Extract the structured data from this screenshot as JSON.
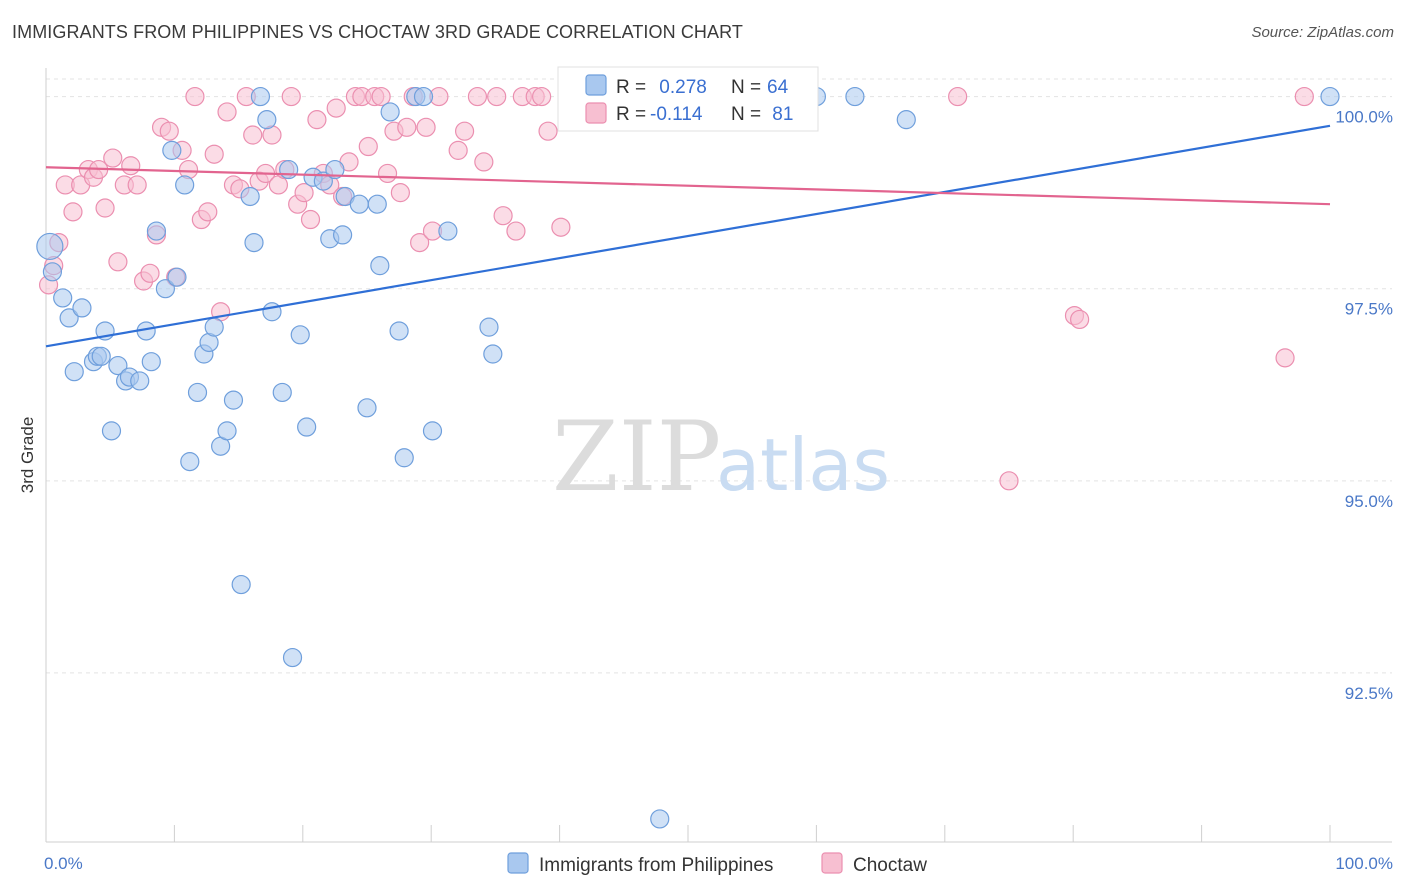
{
  "header": {
    "title": "IMMIGRANTS FROM PHILIPPINES VS CHOCTAW 3RD GRADE CORRELATION CHART",
    "source": "Source: ZipAtlas.com"
  },
  "watermark": {
    "zip": "ZIP",
    "atlas": "atlas"
  },
  "colors": {
    "blue_fill": "#a9c8ef",
    "blue_stroke": "#6f9fdc",
    "blue_line": "#2f6fd6",
    "pink_fill": "#f7bfd1",
    "pink_stroke": "#eb8fb0",
    "pink_line": "#e2648f",
    "grid": "#e3e3e3",
    "tick_label": "#4a78c7"
  },
  "legend": {
    "rows": [
      {
        "r_label": "R =",
        "r_value": " 0.278",
        "n_label": "N =",
        "n_value": "64"
      },
      {
        "r_label": "R =",
        "r_value": "-0.114",
        "n_label": "N =",
        "n_value": " 81"
      }
    ]
  },
  "chart_data": {
    "type": "scatter",
    "title": "IMMIGRANTS FROM PHILIPPINES VS CHOCTAW 3RD GRADE CORRELATION CHART",
    "xlabel": "",
    "ylabel": "3rd Grade",
    "xlim": [
      0,
      100
    ],
    "ylim": [
      90.3,
      100.45
    ],
    "x_tick_labels": [
      "0.0%",
      "100.0%"
    ],
    "y_ticks": [
      {
        "value": 100.0,
        "label": "100.0%"
      },
      {
        "value": 97.5,
        "label": "97.5%"
      },
      {
        "value": 95.0,
        "label": "95.0%"
      },
      {
        "value": 92.5,
        "label": "92.5%"
      }
    ],
    "grid": true,
    "legend_position": "top-center",
    "series": [
      {
        "name": "Immigrants from Philippines",
        "color": "#6f9fdc",
        "trend": {
          "x": [
            0,
            100
          ],
          "y": [
            96.75,
            99.62
          ]
        },
        "points": [
          [
            0.3,
            98.05
          ],
          [
            0.5,
            97.72
          ],
          [
            1.3,
            97.38
          ],
          [
            1.8,
            97.12
          ],
          [
            2.2,
            96.42
          ],
          [
            2.8,
            97.25
          ],
          [
            3.7,
            96.55
          ],
          [
            4.0,
            96.62
          ],
          [
            4.3,
            96.62
          ],
          [
            4.6,
            96.95
          ],
          [
            5.1,
            95.65
          ],
          [
            5.6,
            96.5
          ],
          [
            6.2,
            96.3
          ],
          [
            6.5,
            96.35
          ],
          [
            7.3,
            96.3
          ],
          [
            7.8,
            96.95
          ],
          [
            8.2,
            96.55
          ],
          [
            8.6,
            98.25
          ],
          [
            9.3,
            97.5
          ],
          [
            9.8,
            99.3
          ],
          [
            10.2,
            97.65
          ],
          [
            10.8,
            98.85
          ],
          [
            11.2,
            95.25
          ],
          [
            11.8,
            96.15
          ],
          [
            12.3,
            96.65
          ],
          [
            12.7,
            96.8
          ],
          [
            13.1,
            97.0
          ],
          [
            13.6,
            95.45
          ],
          [
            14.1,
            95.65
          ],
          [
            14.6,
            96.05
          ],
          [
            15.2,
            93.65
          ],
          [
            15.9,
            98.7
          ],
          [
            16.2,
            98.1
          ],
          [
            16.7,
            100.0
          ],
          [
            17.2,
            99.7
          ],
          [
            17.6,
            97.2
          ],
          [
            18.4,
            96.15
          ],
          [
            18.9,
            99.05
          ],
          [
            19.2,
            92.7
          ],
          [
            19.8,
            96.9
          ],
          [
            20.3,
            95.7
          ],
          [
            20.8,
            98.95
          ],
          [
            21.6,
            98.9
          ],
          [
            22.1,
            98.15
          ],
          [
            22.5,
            99.05
          ],
          [
            23.1,
            98.2
          ],
          [
            23.3,
            98.7
          ],
          [
            24.4,
            98.6
          ],
          [
            25.0,
            95.95
          ],
          [
            25.8,
            98.6
          ],
          [
            26.0,
            97.8
          ],
          [
            26.8,
            99.8
          ],
          [
            27.5,
            96.95
          ],
          [
            27.9,
            95.3
          ],
          [
            28.8,
            100.0
          ],
          [
            29.4,
            100.0
          ],
          [
            30.1,
            95.65
          ],
          [
            31.3,
            98.25
          ],
          [
            34.5,
            97.0
          ],
          [
            34.8,
            96.65
          ],
          [
            47.8,
            90.6
          ],
          [
            60.0,
            100.0
          ],
          [
            63.0,
            100.0
          ],
          [
            67.0,
            99.7
          ],
          [
            100.0,
            100.0
          ]
        ]
      },
      {
        "name": "Choctaw",
        "color": "#eb8fb0",
        "trend": {
          "x": [
            0,
            100
          ],
          "y": [
            99.08,
            98.6
          ]
        },
        "points": [
          [
            0.2,
            97.55
          ],
          [
            0.6,
            97.8
          ],
          [
            1.0,
            98.1
          ],
          [
            1.5,
            98.85
          ],
          [
            2.1,
            98.5
          ],
          [
            2.7,
            98.85
          ],
          [
            3.3,
            99.05
          ],
          [
            3.7,
            98.95
          ],
          [
            4.1,
            99.05
          ],
          [
            4.6,
            98.55
          ],
          [
            5.2,
            99.2
          ],
          [
            5.6,
            97.85
          ],
          [
            6.1,
            98.85
          ],
          [
            6.6,
            99.1
          ],
          [
            7.1,
            98.85
          ],
          [
            7.6,
            97.6
          ],
          [
            8.1,
            97.7
          ],
          [
            8.6,
            98.2
          ],
          [
            9.0,
            99.6
          ],
          [
            9.6,
            99.55
          ],
          [
            10.1,
            97.65
          ],
          [
            10.6,
            99.3
          ],
          [
            11.1,
            99.05
          ],
          [
            11.6,
            100.0
          ],
          [
            12.1,
            98.4
          ],
          [
            12.6,
            98.5
          ],
          [
            13.1,
            99.25
          ],
          [
            13.6,
            97.2
          ],
          [
            14.1,
            99.8
          ],
          [
            14.6,
            98.85
          ],
          [
            15.1,
            98.8
          ],
          [
            15.6,
            100.0
          ],
          [
            16.1,
            99.5
          ],
          [
            16.6,
            98.9
          ],
          [
            17.1,
            99.0
          ],
          [
            17.6,
            99.5
          ],
          [
            18.1,
            98.85
          ],
          [
            18.6,
            99.05
          ],
          [
            19.1,
            100.0
          ],
          [
            19.6,
            98.6
          ],
          [
            20.1,
            98.75
          ],
          [
            20.6,
            98.4
          ],
          [
            21.1,
            99.7
          ],
          [
            21.6,
            99.0
          ],
          [
            22.1,
            98.85
          ],
          [
            22.6,
            99.85
          ],
          [
            23.1,
            98.7
          ],
          [
            23.6,
            99.15
          ],
          [
            24.1,
            100.0
          ],
          [
            24.6,
            100.0
          ],
          [
            25.1,
            99.35
          ],
          [
            25.6,
            100.0
          ],
          [
            26.1,
            100.0
          ],
          [
            26.6,
            99.0
          ],
          [
            27.1,
            99.55
          ],
          [
            27.6,
            98.75
          ],
          [
            28.1,
            99.6
          ],
          [
            28.6,
            100.0
          ],
          [
            29.1,
            98.1
          ],
          [
            29.6,
            99.6
          ],
          [
            30.1,
            98.25
          ],
          [
            30.6,
            100.0
          ],
          [
            32.1,
            99.3
          ],
          [
            32.6,
            99.55
          ],
          [
            33.6,
            100.0
          ],
          [
            34.1,
            99.15
          ],
          [
            35.1,
            100.0
          ],
          [
            35.6,
            98.45
          ],
          [
            36.6,
            98.25
          ],
          [
            37.1,
            100.0
          ],
          [
            38.1,
            100.0
          ],
          [
            38.6,
            100.0
          ],
          [
            39.1,
            99.55
          ],
          [
            40.1,
            98.3
          ],
          [
            41.6,
            100.0
          ],
          [
            71.0,
            100.0
          ],
          [
            75.0,
            95.0
          ],
          [
            80.1,
            97.15
          ],
          [
            80.5,
            97.1
          ],
          [
            96.5,
            96.6
          ],
          [
            98.0,
            100.0
          ]
        ]
      }
    ]
  }
}
